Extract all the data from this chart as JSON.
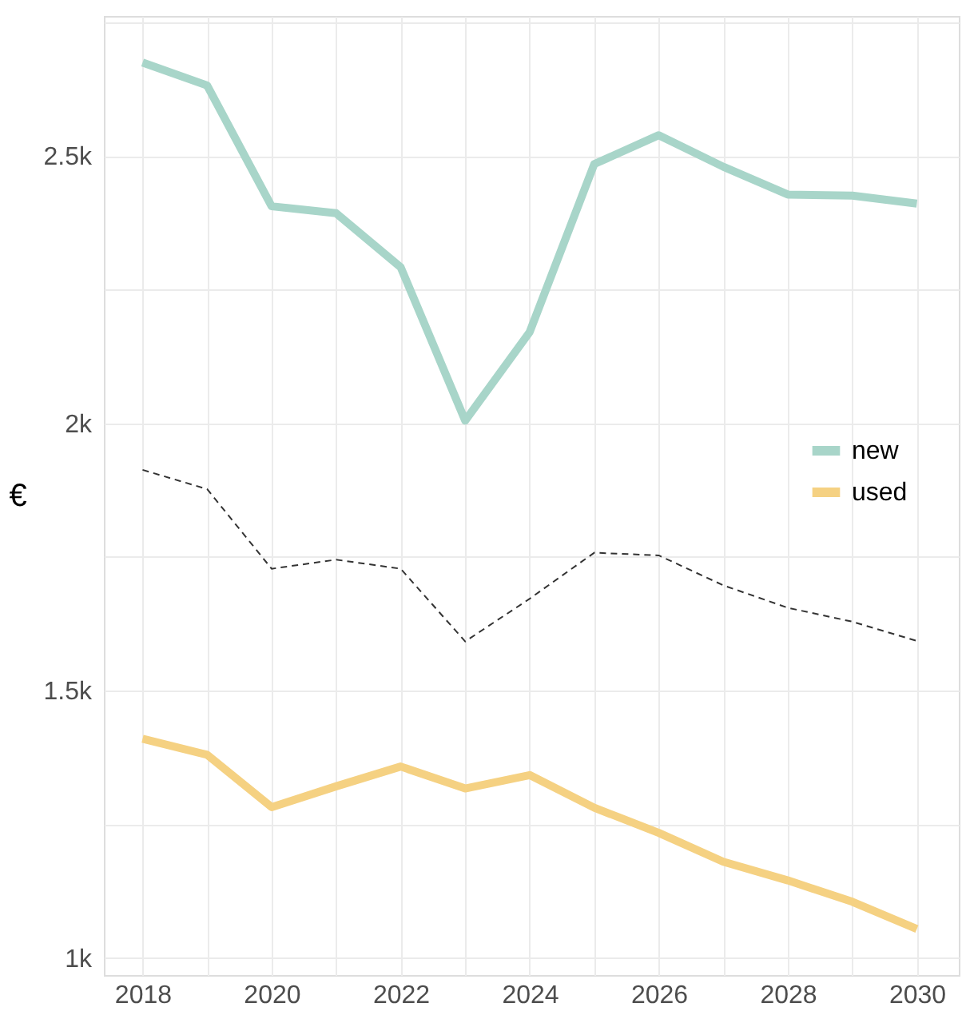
{
  "chart_data": {
    "type": "line",
    "ylabel": "€",
    "x": [
      2018,
      2019,
      2020,
      2021,
      2022,
      2023,
      2024,
      2025,
      2026,
      2027,
      2028,
      2029,
      2030
    ],
    "series": [
      {
        "name": "new",
        "color": "#a8d5c9",
        "values": [
          2675,
          2632,
          2406,
          2393,
          2292,
          2005,
          2171,
          2485,
          2539,
          2480,
          2428,
          2426,
          2411
        ]
      },
      {
        "color": "#333333",
        "line_style": "dashed",
        "values": [
          1913,
          1877,
          1728,
          1745,
          1728,
          1592,
          1672,
          1758,
          1753,
          1697,
          1655,
          1629,
          1593
        ]
      },
      {
        "name": "used",
        "color": "#f5d182",
        "values": [
          1410,
          1380,
          1282,
          1321,
          1358,
          1317,
          1342,
          1281,
          1234,
          1180,
          1145,
          1105,
          1054
        ]
      }
    ],
    "xlim": [
      2017.4,
      2030.65
    ],
    "xticks": [
      2018,
      {
        "value": 2019,
        "label": null
      },
      2020,
      {
        "value": 2021,
        "label": null
      },
      2022,
      {
        "value": 2023,
        "label": null
      },
      2024,
      {
        "value": 2025,
        "label": null
      },
      2026,
      {
        "value": 2027,
        "label": null
      },
      2028,
      {
        "value": 2029,
        "label": null
      },
      2030
    ],
    "ylim": [
      968,
      2762
    ],
    "yticks": [
      {
        "value": 1000,
        "label": "1k"
      },
      {
        "value": 1250,
        "label": null
      },
      {
        "value": 1500,
        "label": "1.5k"
      },
      {
        "value": 1750,
        "label": null
      },
      {
        "value": 2000,
        "label": "2k"
      },
      {
        "value": 2250,
        "label": null
      },
      {
        "value": 2500,
        "label": "2.5k"
      },
      {
        "value": 2750,
        "label": null
      }
    ],
    "grid": true,
    "legend": "right",
    "marker": "none",
    "line_style": "solid"
  }
}
